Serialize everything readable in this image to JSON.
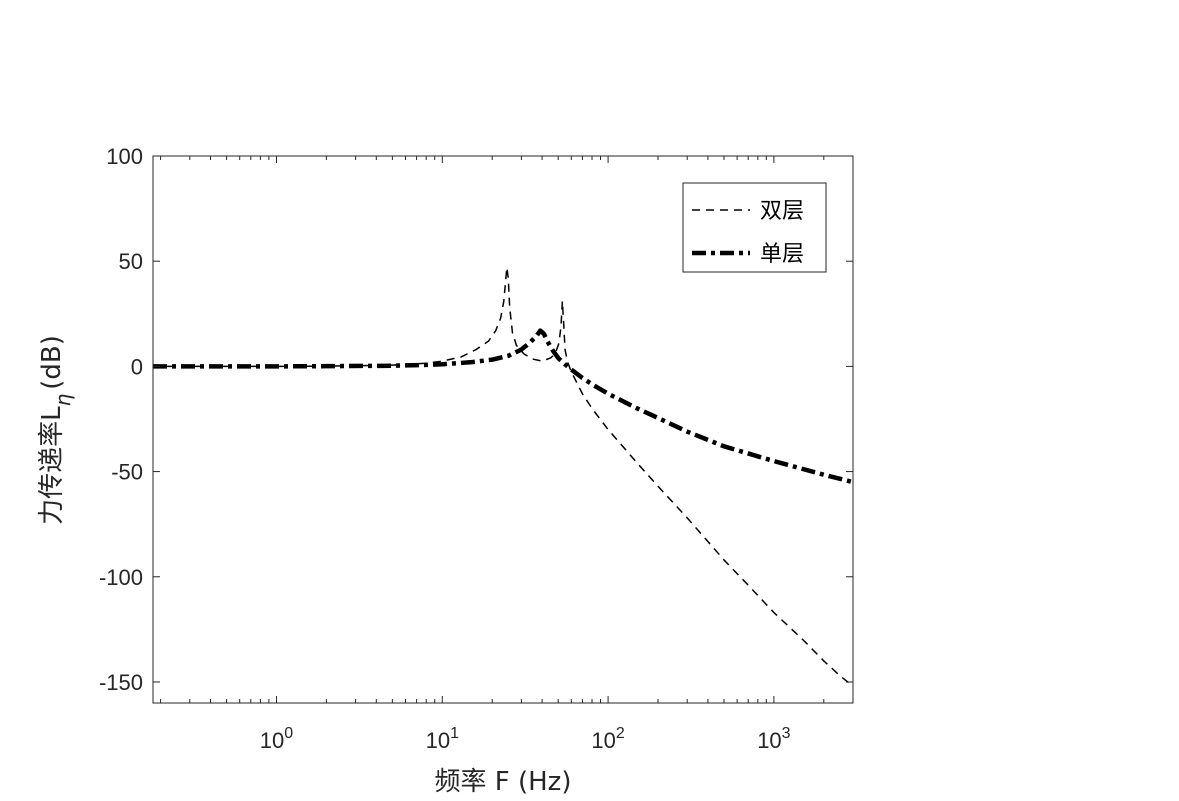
{
  "chart_data": {
    "type": "line",
    "xscale": "log",
    "xlim": [
      0.18,
      3000
    ],
    "ylim": [
      -160,
      100
    ],
    "grid": false,
    "legend_position": "top-right",
    "xlabel": "频率 F (Hz)",
    "ylabel": "力传递率L",
    "ylabel_subscript": "η",
    "ylabel_unit": "(dB)",
    "x_ticks": [
      {
        "value": 1,
        "base": "10",
        "exp": "0"
      },
      {
        "value": 10,
        "base": "10",
        "exp": "1"
      },
      {
        "value": 100,
        "base": "10",
        "exp": "2"
      },
      {
        "value": 1000,
        "base": "10",
        "exp": "3"
      }
    ],
    "y_ticks": [
      100,
      50,
      0,
      -50,
      -100,
      -150
    ],
    "series": [
      {
        "name": "双层",
        "style": "dashed",
        "color": "#000000",
        "x": [
          0.18,
          0.5,
          1,
          2,
          5,
          8,
          10,
          13,
          16,
          19,
          21,
          22.5,
          23.5,
          24.5,
          25,
          25.5,
          26.5,
          28,
          31,
          35,
          40,
          45,
          48,
          50.5,
          52,
          53,
          54,
          55,
          57,
          60,
          65,
          70,
          80,
          100,
          150,
          200,
          300,
          500,
          700,
          1000,
          1500,
          2000,
          2500,
          3000
        ],
        "y": [
          0,
          0,
          0,
          0.1,
          0.6,
          1.5,
          2.5,
          4.5,
          8,
          12,
          17,
          23,
          31,
          47,
          42,
          28,
          16,
          10,
          6,
          3.5,
          2.5,
          4,
          6,
          11,
          19,
          31,
          20,
          8,
          2,
          -2.5,
          -8,
          -13,
          -20,
          -30,
          -46,
          -57,
          -72,
          -92,
          -104,
          -117,
          -130,
          -140,
          -147,
          -152
        ]
      },
      {
        "name": "单层",
        "style": "dashdot",
        "color": "#000000",
        "x": [
          0.18,
          0.5,
          1,
          2,
          5,
          8,
          10,
          15,
          20,
          25,
          30,
          34,
          37,
          39,
          41,
          43,
          46,
          50,
          55,
          60,
          70,
          80,
          100,
          150,
          200,
          300,
          500,
          1000,
          2000,
          3000
        ],
        "y": [
          0,
          0,
          0,
          0.1,
          0.3,
          0.7,
          1,
          2,
          3.2,
          5,
          8,
          11.5,
          14.5,
          17,
          15.5,
          12,
          8,
          4,
          1,
          -1.5,
          -5.5,
          -8.5,
          -13,
          -20,
          -24.5,
          -31,
          -38,
          -45,
          -51.5,
          -55
        ]
      }
    ]
  }
}
